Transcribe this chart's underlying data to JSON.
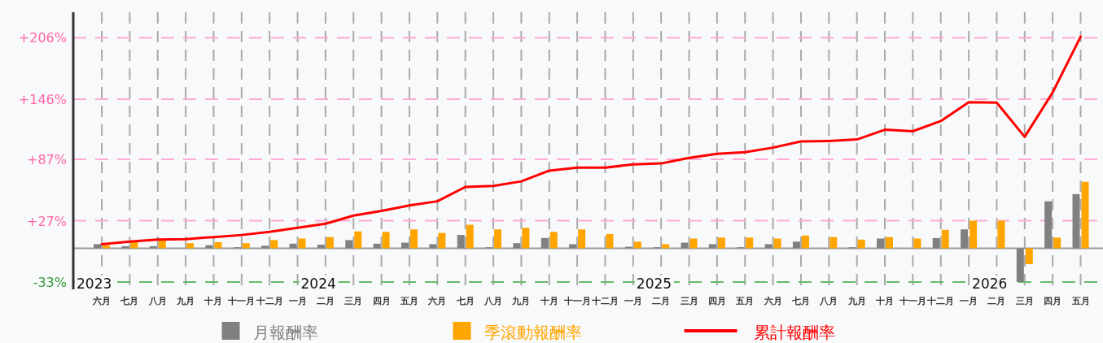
{
  "chart_data": {
    "type": "bar",
    "grid": true,
    "legend": "bottom",
    "categories": [
      "六月",
      "七月",
      "八月",
      "九月",
      "十月",
      "十一月",
      "十二月",
      "一月",
      "二月",
      "三月",
      "四月",
      "五月",
      "六月",
      "七月",
      "八月",
      "九月",
      "十月",
      "十一月",
      "十二月",
      "一月",
      "二月",
      "三月",
      "四月",
      "五月",
      "六月",
      "七月",
      "八月",
      "九月",
      "十月",
      "十一月",
      "十二月",
      "一月",
      "二月",
      "三月",
      "四月",
      "五月"
    ],
    "ylim": [
      -37,
      231
    ],
    "yticks": [
      {
        "value": 206,
        "label": "+206%"
      },
      {
        "value": 146,
        "label": "+146%"
      },
      {
        "value": 87,
        "label": "+87%"
      },
      {
        "value": 27,
        "label": "+27%"
      },
      {
        "value": -33,
        "label": "-33%"
      }
    ],
    "annotations": [
      "2023",
      "2024",
      "2025",
      "2026"
    ],
    "ref_lines": [
      {
        "axis": "y",
        "value": -33,
        "color": "#66bb66",
        "line_style": "dashed"
      }
    ],
    "series": [
      {
        "name": "月報酬率",
        "color": "#808080",
        "values": [
          4,
          2,
          2,
          null,
          3,
          1,
          2.5,
          4.5,
          3.5,
          8,
          4.5,
          5.5,
          4,
          13,
          1,
          5,
          10,
          4,
          0,
          1.5,
          1,
          5.5,
          4,
          1,
          4,
          6.5,
          0,
          1,
          9.5,
          0,
          10,
          18.5,
          0,
          -33,
          46,
          53
        ]
      },
      {
        "name": "季滾動報酬率",
        "color": "#ffa500",
        "values": [
          3,
          6,
          8.5,
          5,
          6,
          5,
          8,
          9.5,
          11,
          16.5,
          16,
          18.5,
          15,
          23,
          18.5,
          20,
          16,
          18.5,
          14,
          6.5,
          4,
          9.5,
          10.5,
          10.5,
          9.5,
          12.5,
          11,
          8.5,
          11,
          9.5,
          18,
          27,
          27,
          -15.5,
          10.5,
          65
        ]
      },
      {
        "name": "累計報酬率",
        "type": "line",
        "color": "#ff0000",
        "values": [
          4,
          6.5,
          8.5,
          9,
          11,
          13,
          16,
          20,
          24,
          32,
          36.5,
          42,
          46,
          60,
          61,
          65.5,
          76,
          79,
          79,
          82,
          83,
          88.5,
          92.5,
          94,
          98.5,
          104.5,
          105,
          106.5,
          116,
          114.5,
          124.5,
          143,
          142.5,
          109,
          152.5,
          207
        ]
      }
    ]
  }
}
